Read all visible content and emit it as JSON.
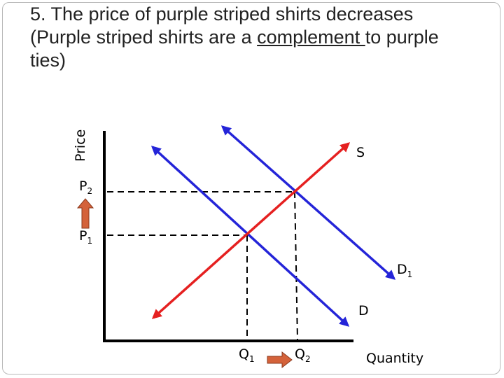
{
  "slide": {
    "title_line1": "5. The price of purple striped shirts decreases",
    "title_line2_before": "(Purple striped shirts are a ",
    "title_line2_underlined": "complement ",
    "title_line2_after": "to purple",
    "title_line3": "ties)"
  },
  "graph": {
    "axis_y_label": "Price",
    "axis_x_label": "Quantity",
    "supply_label": "S",
    "demand_label": "D",
    "demand_new_label": "D",
    "demand_new_subscript": "1",
    "price_label": "P",
    "p1_subscript": "1",
    "p2_subscript": "2",
    "quantity_label": "Q",
    "q1_subscript": "1",
    "q2_subscript": "2",
    "colors": {
      "supply": "#e52020",
      "demand": "#2424d8",
      "change_arrow": "#d4623a",
      "axis": "#000000",
      "guide": "#000000"
    }
  }
}
